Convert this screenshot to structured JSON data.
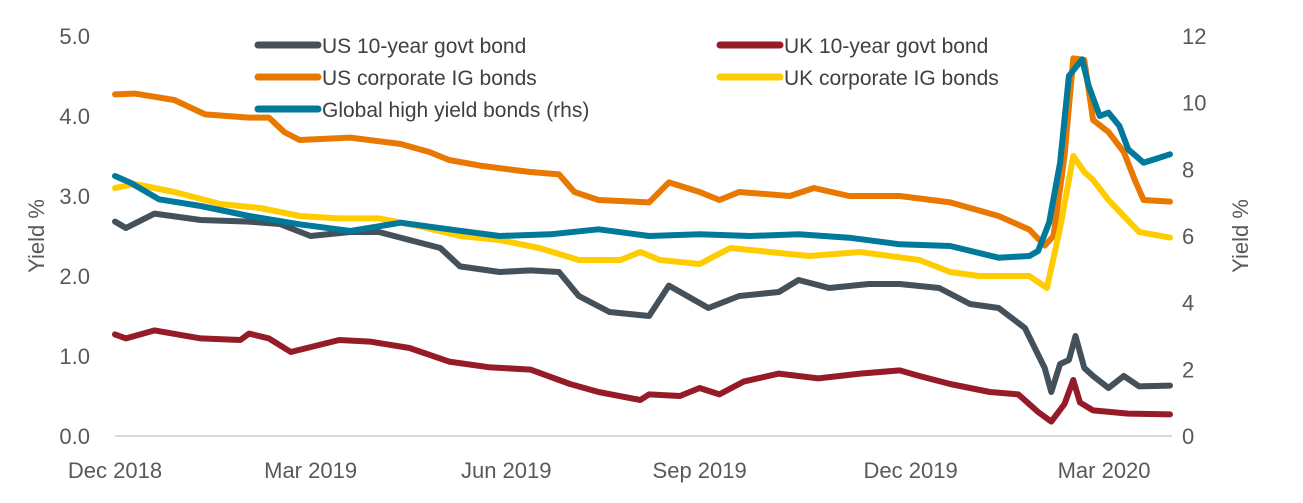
{
  "chart_data": {
    "type": "line",
    "title": "",
    "xlabel": "",
    "ylabel": "Yield %",
    "y2label": "Yield %",
    "ylim": [
      0,
      5
    ],
    "y2lim": [
      0,
      12
    ],
    "yticks": [
      "0.0",
      "1.0",
      "2.0",
      "3.0",
      "4.0",
      "5.0"
    ],
    "y2ticks": [
      "0",
      "2",
      "4",
      "6",
      "8",
      "10",
      "12"
    ],
    "x_unit": "days since 3 Dec 2018",
    "xlim": [
      0,
      480
    ],
    "xticks": [
      {
        "label": "Dec 2018",
        "day": 0
      },
      {
        "label": "Mar 2019",
        "day": 89
      },
      {
        "label": "Jun 2019",
        "day": 178
      },
      {
        "label": "Sep 2019",
        "day": 266
      },
      {
        "label": "Dec 2019",
        "day": 362
      },
      {
        "label": "Mar 2020",
        "day": 450
      }
    ],
    "grid": false,
    "legend_position": "top",
    "series": [
      {
        "name": "US 10-year govt bond",
        "color": "#44505a",
        "axis": "left",
        "points": [
          [
            0,
            2.68
          ],
          [
            5,
            2.6
          ],
          [
            18,
            2.78
          ],
          [
            39,
            2.7
          ],
          [
            61,
            2.68
          ],
          [
            75,
            2.65
          ],
          [
            89,
            2.5
          ],
          [
            107,
            2.55
          ],
          [
            120,
            2.55
          ],
          [
            134,
            2.45
          ],
          [
            148,
            2.35
          ],
          [
            157,
            2.12
          ],
          [
            175,
            2.05
          ],
          [
            189,
            2.07
          ],
          [
            202,
            2.05
          ],
          [
            211,
            1.75
          ],
          [
            225,
            1.55
          ],
          [
            243,
            1.5
          ],
          [
            252,
            1.88
          ],
          [
            270,
            1.6
          ],
          [
            284,
            1.75
          ],
          [
            302,
            1.8
          ],
          [
            311,
            1.95
          ],
          [
            325,
            1.85
          ],
          [
            343,
            1.9
          ],
          [
            357,
            1.9
          ],
          [
            375,
            1.85
          ],
          [
            389,
            1.65
          ],
          [
            402,
            1.6
          ],
          [
            414,
            1.35
          ],
          [
            423,
            0.85
          ],
          [
            426,
            0.55
          ],
          [
            430,
            0.9
          ],
          [
            434,
            0.95
          ],
          [
            437,
            1.25
          ],
          [
            441,
            0.85
          ],
          [
            445,
            0.75
          ],
          [
            452,
            0.6
          ],
          [
            459,
            0.75
          ],
          [
            466,
            0.62
          ],
          [
            480,
            0.63
          ]
        ]
      },
      {
        "name": "UK 10-year govt bond",
        "color": "#951b28",
        "axis": "left",
        "points": [
          [
            0,
            1.27
          ],
          [
            5,
            1.22
          ],
          [
            18,
            1.32
          ],
          [
            39,
            1.22
          ],
          [
            57,
            1.2
          ],
          [
            61,
            1.28
          ],
          [
            70,
            1.22
          ],
          [
            80,
            1.05
          ],
          [
            102,
            1.2
          ],
          [
            116,
            1.18
          ],
          [
            134,
            1.1
          ],
          [
            152,
            0.93
          ],
          [
            170,
            0.86
          ],
          [
            189,
            0.83
          ],
          [
            207,
            0.65
          ],
          [
            220,
            0.55
          ],
          [
            239,
            0.45
          ],
          [
            243,
            0.52
          ],
          [
            257,
            0.5
          ],
          [
            266,
            0.6
          ],
          [
            275,
            0.52
          ],
          [
            286,
            0.68
          ],
          [
            302,
            0.78
          ],
          [
            320,
            0.72
          ],
          [
            339,
            0.78
          ],
          [
            357,
            0.82
          ],
          [
            366,
            0.75
          ],
          [
            380,
            0.65
          ],
          [
            398,
            0.55
          ],
          [
            411,
            0.52
          ],
          [
            420,
            0.3
          ],
          [
            426,
            0.18
          ],
          [
            432,
            0.4
          ],
          [
            436,
            0.7
          ],
          [
            439,
            0.42
          ],
          [
            445,
            0.32
          ],
          [
            461,
            0.28
          ],
          [
            480,
            0.27
          ]
        ]
      },
      {
        "name": "US corporate IG bonds",
        "color": "#e97800",
        "axis": "left",
        "points": [
          [
            0,
            4.27
          ],
          [
            9,
            4.28
          ],
          [
            27,
            4.2
          ],
          [
            41,
            4.02
          ],
          [
            61,
            3.98
          ],
          [
            70,
            3.98
          ],
          [
            77,
            3.8
          ],
          [
            84,
            3.7
          ],
          [
            107,
            3.73
          ],
          [
            130,
            3.65
          ],
          [
            143,
            3.55
          ],
          [
            152,
            3.45
          ],
          [
            166,
            3.38
          ],
          [
            180,
            3.33
          ],
          [
            189,
            3.3
          ],
          [
            202,
            3.27
          ],
          [
            209,
            3.05
          ],
          [
            220,
            2.95
          ],
          [
            243,
            2.92
          ],
          [
            252,
            3.17
          ],
          [
            266,
            3.05
          ],
          [
            275,
            2.95
          ],
          [
            284,
            3.05
          ],
          [
            307,
            3.0
          ],
          [
            318,
            3.1
          ],
          [
            334,
            3.0
          ],
          [
            357,
            3.0
          ],
          [
            380,
            2.92
          ],
          [
            402,
            2.75
          ],
          [
            416,
            2.58
          ],
          [
            423,
            2.38
          ],
          [
            427,
            2.5
          ],
          [
            432,
            3.5
          ],
          [
            436,
            4.72
          ],
          [
            441,
            4.7
          ],
          [
            445,
            3.95
          ],
          [
            452,
            3.8
          ],
          [
            459,
            3.55
          ],
          [
            464,
            3.2
          ],
          [
            468,
            2.95
          ],
          [
            480,
            2.93
          ]
        ]
      },
      {
        "name": "UK corporate IG bonds",
        "color": "#ffcc00",
        "axis": "left",
        "points": [
          [
            0,
            3.1
          ],
          [
            9,
            3.15
          ],
          [
            27,
            3.05
          ],
          [
            48,
            2.9
          ],
          [
            66,
            2.85
          ],
          [
            84,
            2.75
          ],
          [
            102,
            2.72
          ],
          [
            120,
            2.72
          ],
          [
            139,
            2.62
          ],
          [
            157,
            2.5
          ],
          [
            175,
            2.45
          ],
          [
            193,
            2.35
          ],
          [
            211,
            2.2
          ],
          [
            230,
            2.2
          ],
          [
            239,
            2.3
          ],
          [
            248,
            2.2
          ],
          [
            266,
            2.15
          ],
          [
            280,
            2.35
          ],
          [
            298,
            2.3
          ],
          [
            316,
            2.25
          ],
          [
            339,
            2.3
          ],
          [
            366,
            2.2
          ],
          [
            380,
            2.05
          ],
          [
            393,
            2.0
          ],
          [
            416,
            2.0
          ],
          [
            424,
            1.85
          ],
          [
            430,
            2.6
          ],
          [
            436,
            3.5
          ],
          [
            441,
            3.3
          ],
          [
            445,
            3.2
          ],
          [
            452,
            2.95
          ],
          [
            459,
            2.75
          ],
          [
            466,
            2.55
          ],
          [
            480,
            2.48
          ]
        ]
      },
      {
        "name": "Global high yield bonds (rhs)",
        "color": "#00799a",
        "axis": "right",
        "points": [
          [
            0,
            7.8
          ],
          [
            7,
            7.6
          ],
          [
            20,
            7.1
          ],
          [
            39,
            6.9
          ],
          [
            61,
            6.6
          ],
          [
            84,
            6.35
          ],
          [
            107,
            6.15
          ],
          [
            130,
            6.4
          ],
          [
            152,
            6.2
          ],
          [
            175,
            6.0
          ],
          [
            198,
            6.05
          ],
          [
            220,
            6.2
          ],
          [
            243,
            6.0
          ],
          [
            266,
            6.05
          ],
          [
            289,
            6.0
          ],
          [
            311,
            6.05
          ],
          [
            334,
            5.95
          ],
          [
            357,
            5.75
          ],
          [
            380,
            5.7
          ],
          [
            402,
            5.35
          ],
          [
            416,
            5.4
          ],
          [
            420,
            5.55
          ],
          [
            425,
            6.4
          ],
          [
            430,
            8.2
          ],
          [
            434,
            10.8
          ],
          [
            440,
            11.3
          ],
          [
            443,
            10.5
          ],
          [
            448,
            9.6
          ],
          [
            452,
            9.7
          ],
          [
            457,
            9.3
          ],
          [
            461,
            8.6
          ],
          [
            468,
            8.2
          ],
          [
            473,
            8.3
          ],
          [
            480,
            8.45
          ]
        ]
      }
    ]
  }
}
